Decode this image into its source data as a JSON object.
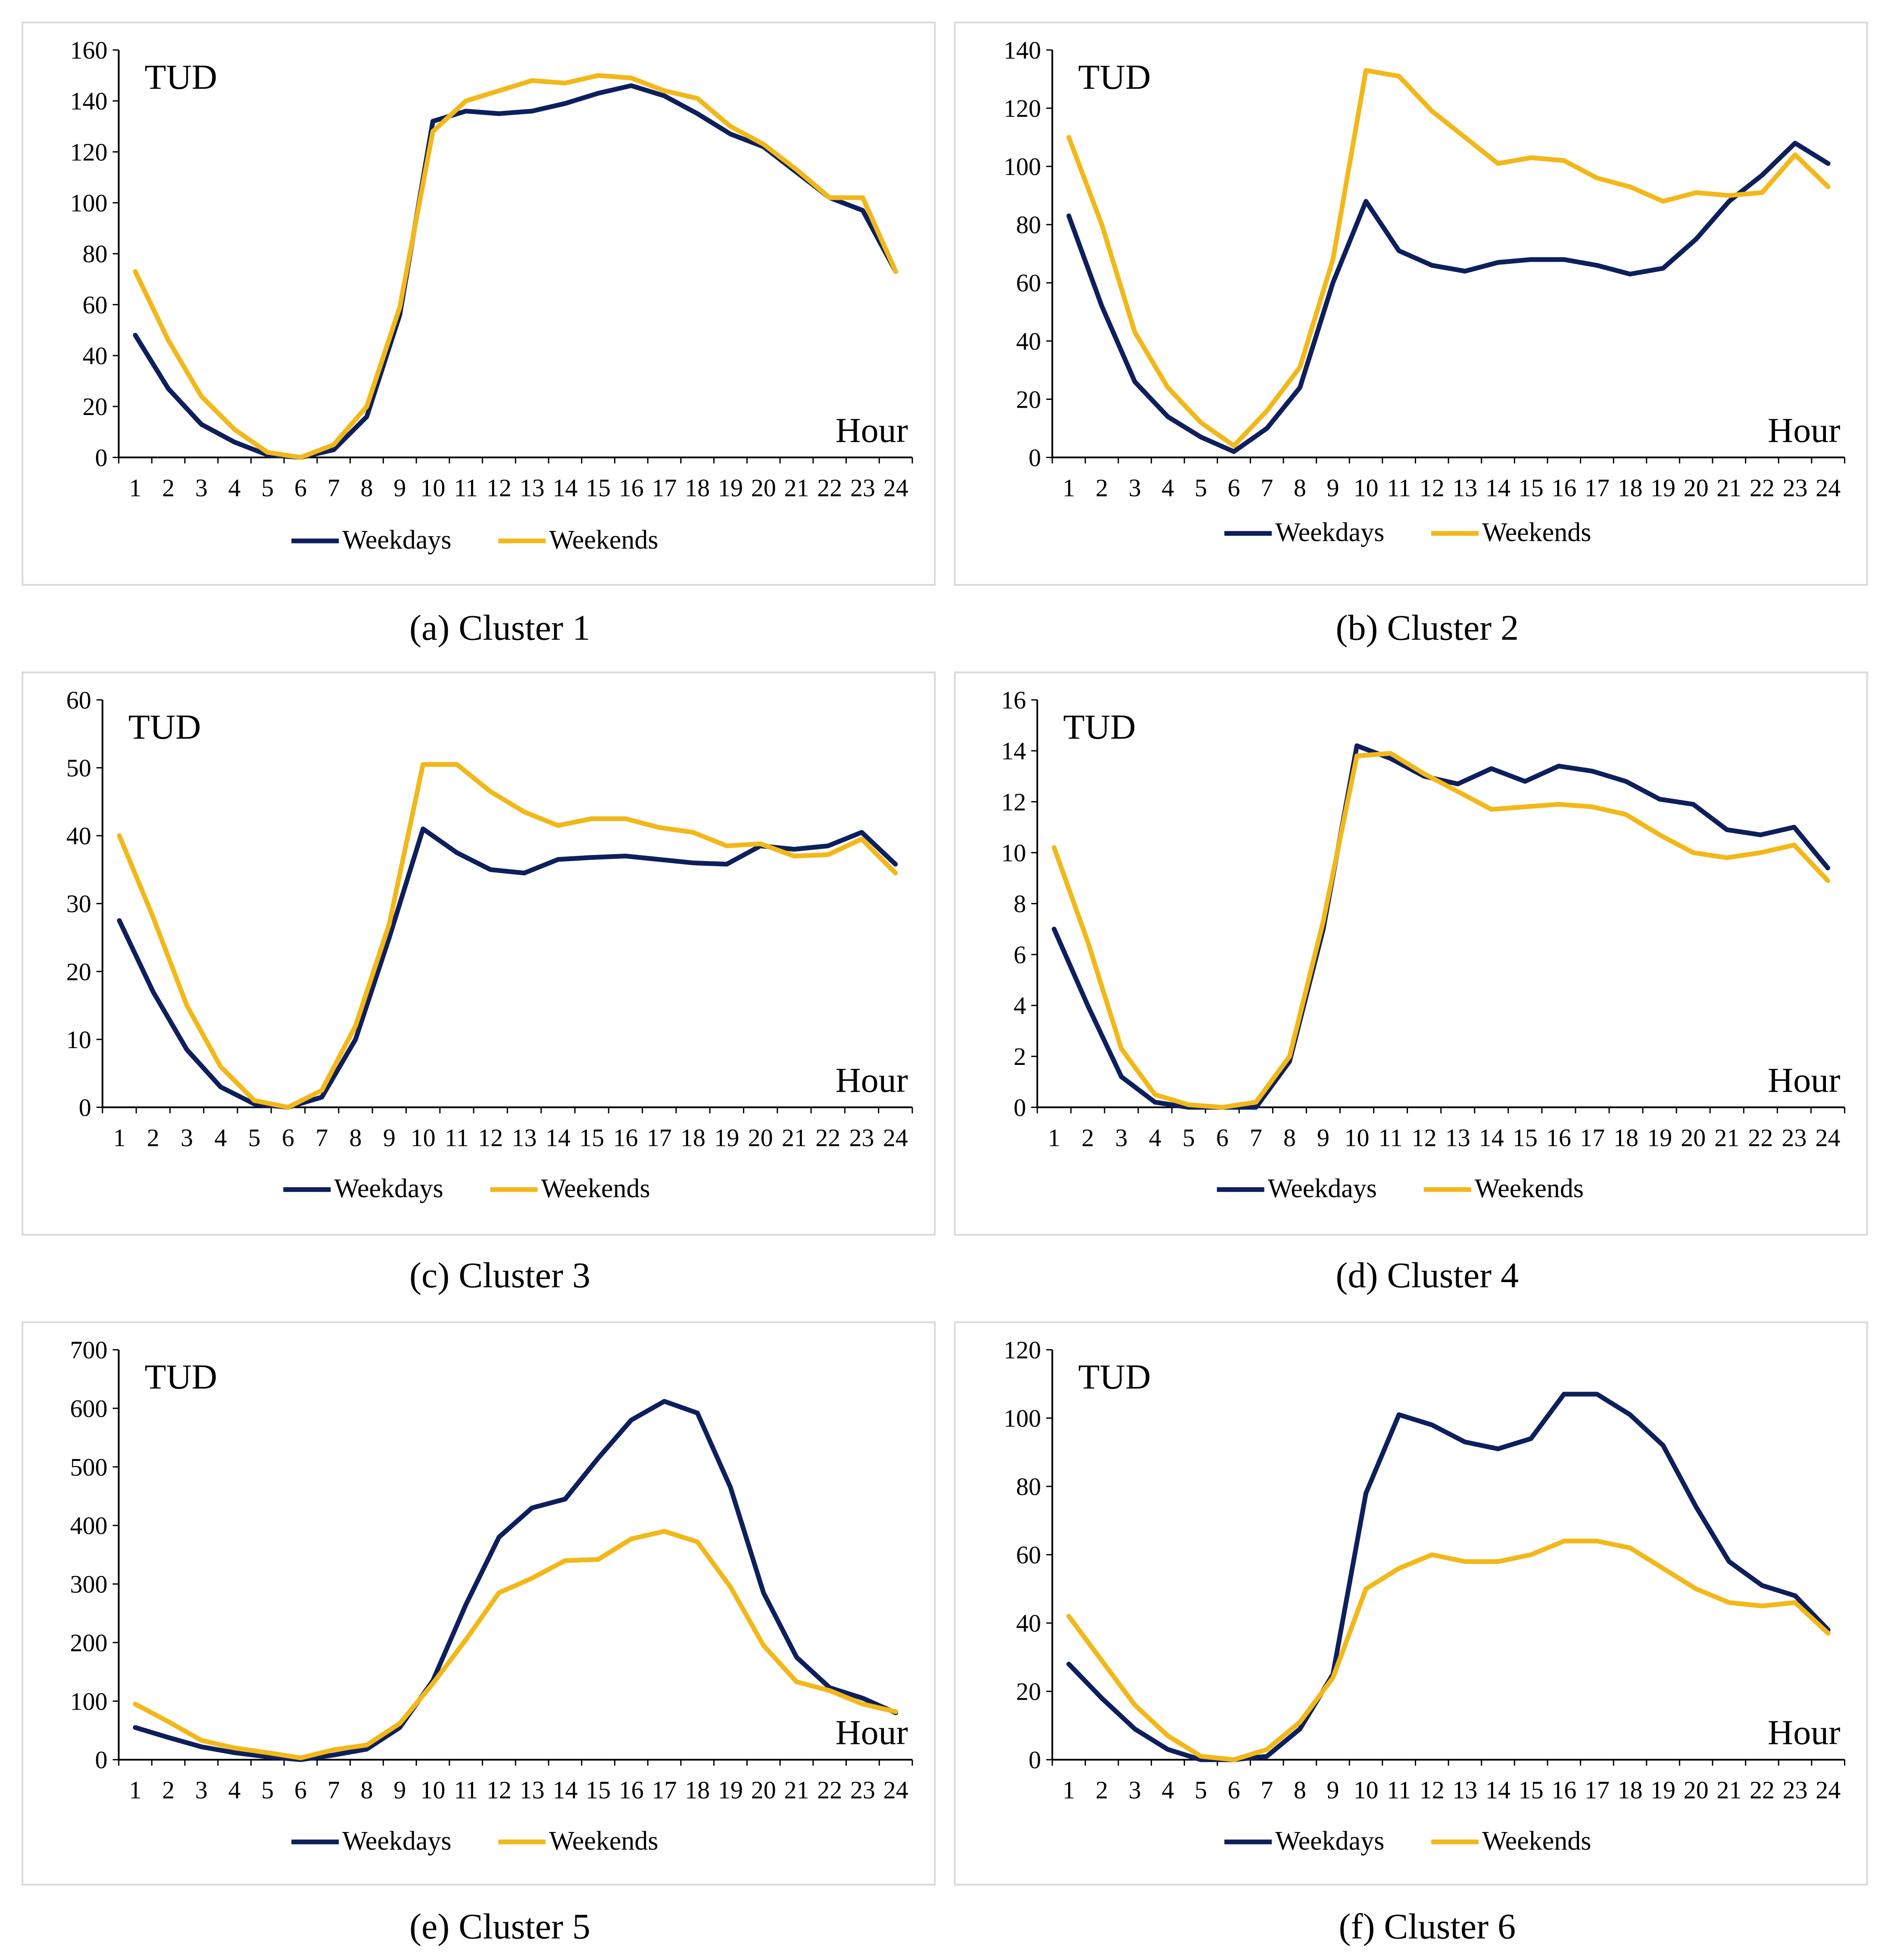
{
  "colors": {
    "weekdays": "#0d1f5c",
    "weekends": "#f2b81a"
  },
  "chart_data": [
    {
      "type": "line",
      "caption": "(a)  Cluster 1",
      "ylabel": "TUD",
      "xlabel": "Hour",
      "ylim": [
        0,
        160
      ],
      "yticks": [
        0,
        20,
        40,
        60,
        80,
        100,
        120,
        140,
        160
      ],
      "categories": [
        "1",
        "2",
        "3",
        "4",
        "5",
        "6",
        "7",
        "8",
        "9",
        "10",
        "11",
        "12",
        "13",
        "14",
        "15",
        "16",
        "17",
        "18",
        "19",
        "20",
        "21",
        "22",
        "23",
        "24"
      ],
      "grid": false,
      "legend": "bottom",
      "series": [
        {
          "name": "Weekdays",
          "values": [
            48,
            27,
            13,
            6,
            1,
            0,
            3,
            16,
            56,
            132,
            136,
            135,
            136,
            139,
            143,
            146,
            142,
            135,
            127,
            122,
            112,
            102,
            97,
            73
          ]
        },
        {
          "name": "Weekends",
          "values": [
            73,
            46,
            24,
            11,
            2,
            0,
            5,
            20,
            59,
            128,
            140,
            144,
            148,
            147,
            150,
            149,
            144,
            141,
            130,
            123,
            113,
            102,
            102,
            73
          ]
        }
      ]
    },
    {
      "type": "line",
      "caption": "(b)  Cluster 2",
      "ylabel": "TUD",
      "xlabel": "Hour",
      "ylim": [
        0,
        140
      ],
      "yticks": [
        0,
        20,
        40,
        60,
        80,
        100,
        120,
        140
      ],
      "categories": [
        "1",
        "2",
        "3",
        "4",
        "5",
        "6",
        "7",
        "8",
        "9",
        "10",
        "11",
        "12",
        "13",
        "14",
        "15",
        "16",
        "17",
        "18",
        "19",
        "20",
        "21",
        "22",
        "23",
        "24"
      ],
      "grid": false,
      "legend": "bottom",
      "series": [
        {
          "name": "Weekdays",
          "values": [
            83,
            52,
            26,
            14,
            7,
            2,
            10,
            24,
            60,
            88,
            71,
            66,
            64,
            67,
            68,
            68,
            66,
            63,
            65,
            75,
            88,
            97,
            108,
            101
          ]
        },
        {
          "name": "Weekends",
          "values": [
            110,
            80,
            43,
            24,
            12,
            4,
            16,
            31,
            68,
            133,
            131,
            119,
            110,
            101,
            103,
            102,
            96,
            93,
            88,
            91,
            90,
            91,
            104,
            93
          ]
        }
      ]
    },
    {
      "type": "line",
      "caption": "(c)  Cluster 3",
      "ylabel": "TUD",
      "xlabel": "Hour",
      "ylim": [
        0,
        60
      ],
      "yticks": [
        0,
        10,
        20,
        30,
        40,
        50,
        60
      ],
      "categories": [
        "1",
        "2",
        "3",
        "4",
        "5",
        "6",
        "7",
        "8",
        "9",
        "10",
        "11",
        "12",
        "13",
        "14",
        "15",
        "16",
        "17",
        "18",
        "19",
        "20",
        "21",
        "22",
        "23",
        "24"
      ],
      "grid": false,
      "legend": "bottom",
      "series": [
        {
          "name": "Weekdays",
          "values": [
            27.5,
            17,
            8.5,
            3,
            0.5,
            0,
            1.5,
            10,
            25,
            41,
            37.5,
            35,
            34.5,
            36.5,
            36.8,
            37,
            36.5,
            36,
            35.8,
            38.5,
            38,
            38.5,
            40.5,
            35.8
          ]
        },
        {
          "name": "Weekends",
          "values": [
            40,
            28,
            15,
            6,
            1,
            0,
            2.5,
            12,
            27,
            50.5,
            50.5,
            46.5,
            43.5,
            41.5,
            42.5,
            42.5,
            41.2,
            40.5,
            38.5,
            38.8,
            37,
            37.2,
            39.5,
            34.5
          ]
        }
      ]
    },
    {
      "type": "line",
      "caption": "(d)  Cluster 4",
      "ylabel": "TUD",
      "xlabel": "Hour",
      "ylim": [
        0,
        16
      ],
      "yticks": [
        0,
        2,
        4,
        6,
        8,
        10,
        12,
        14,
        16
      ],
      "categories": [
        "1",
        "2",
        "3",
        "4",
        "5",
        "6",
        "7",
        "8",
        "9",
        "10",
        "11",
        "12",
        "13",
        "14",
        "15",
        "16",
        "17",
        "18",
        "19",
        "20",
        "21",
        "22",
        "23",
        "24"
      ],
      "grid": false,
      "legend": "bottom",
      "series": [
        {
          "name": "Weekdays",
          "values": [
            7,
            4,
            1.2,
            0.2,
            0,
            0,
            0,
            1.8,
            7,
            14.2,
            13.7,
            13,
            12.7,
            13.3,
            12.8,
            13.4,
            13.2,
            12.8,
            12.1,
            11.9,
            10.9,
            10.7,
            11,
            9.4
          ]
        },
        {
          "name": "Weekends",
          "values": [
            10.2,
            6.5,
            2.3,
            0.5,
            0.1,
            0,
            0.2,
            2,
            7.3,
            13.8,
            13.9,
            13.1,
            12.4,
            11.7,
            11.8,
            11.9,
            11.8,
            11.5,
            10.7,
            10,
            9.8,
            10,
            10.3,
            8.9
          ]
        }
      ]
    },
    {
      "type": "line",
      "caption": "(e)  Cluster 5",
      "ylabel": "TUD",
      "xlabel": "Hour",
      "ylim": [
        0,
        700
      ],
      "yticks": [
        0,
        100,
        200,
        300,
        400,
        500,
        600,
        700
      ],
      "categories": [
        "1",
        "2",
        "3",
        "4",
        "5",
        "6",
        "7",
        "8",
        "9",
        "10",
        "11",
        "12",
        "13",
        "14",
        "15",
        "16",
        "17",
        "18",
        "19",
        "20",
        "21",
        "22",
        "23",
        "24"
      ],
      "grid": false,
      "legend": "bottom",
      "series": [
        {
          "name": "Weekdays",
          "values": [
            55,
            38,
            22,
            12,
            5,
            0,
            8,
            18,
            55,
            135,
            265,
            380,
            430,
            445,
            515,
            580,
            612,
            592,
            465,
            285,
            175,
            123,
            105,
            80
          ]
        },
        {
          "name": "Weekends",
          "values": [
            95,
            65,
            33,
            20,
            12,
            3,
            17,
            25,
            62,
            130,
            205,
            285,
            310,
            340,
            342,
            377,
            390,
            372,
            295,
            195,
            133,
            118,
            95,
            82
          ]
        }
      ]
    },
    {
      "type": "line",
      "caption": "(f)  Cluster 6",
      "ylabel": "TUD",
      "xlabel": "Hour",
      "ylim": [
        0,
        120
      ],
      "yticks": [
        0,
        20,
        40,
        60,
        80,
        100,
        120
      ],
      "categories": [
        "1",
        "2",
        "3",
        "4",
        "5",
        "6",
        "7",
        "8",
        "9",
        "10",
        "11",
        "12",
        "13",
        "14",
        "15",
        "16",
        "17",
        "18",
        "19",
        "20",
        "21",
        "22",
        "23",
        "24"
      ],
      "grid": false,
      "legend": "bottom",
      "series": [
        {
          "name": "Weekdays",
          "values": [
            28,
            18,
            9,
            3,
            0,
            0,
            1,
            9,
            25,
            78,
            101,
            98,
            93,
            91,
            94,
            107,
            107,
            101,
            92,
            74,
            58,
            51,
            48,
            38
          ]
        },
        {
          "name": "Weekends",
          "values": [
            42,
            29,
            16,
            7,
            1,
            0,
            3,
            11,
            24,
            50,
            56,
            60,
            58,
            58,
            60,
            64,
            64,
            62,
            56,
            50,
            46,
            45,
            46,
            37
          ]
        }
      ]
    }
  ]
}
